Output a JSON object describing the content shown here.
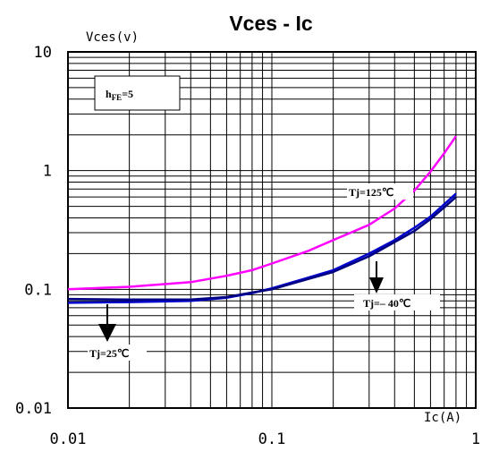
{
  "chart_data": {
    "type": "line",
    "title": "Vces - Ic",
    "ylabel": "Vces(v)",
    "xlabel": "Ic(A)",
    "x_scale": "log",
    "y_scale": "log",
    "xlim": [
      0.01,
      1
    ],
    "ylim": [
      0.01,
      10
    ],
    "grid": true,
    "x_tick_labels": [
      "0.01",
      "0.1",
      "1"
    ],
    "y_tick_labels": [
      "10",
      "1",
      "0.1",
      "0.01"
    ],
    "parameter_box": {
      "text": "h",
      "sub": "FE",
      "suffix": "=5"
    },
    "series": [
      {
        "name": "Tj=125℃",
        "color": "#ff00ff",
        "x": [
          0.01,
          0.02,
          0.04,
          0.06,
          0.08,
          0.1,
          0.15,
          0.2,
          0.3,
          0.4,
          0.5,
          0.6,
          0.7,
          0.8
        ],
        "y": [
          0.1,
          0.105,
          0.115,
          0.13,
          0.145,
          0.165,
          0.21,
          0.26,
          0.35,
          0.48,
          0.68,
          0.98,
          1.4,
          1.95
        ]
      },
      {
        "name": "Tj=25℃",
        "color": "#0000cc",
        "x": [
          0.01,
          0.02,
          0.04,
          0.06,
          0.08,
          0.1,
          0.15,
          0.2,
          0.3,
          0.4,
          0.5,
          0.6,
          0.7,
          0.8
        ],
        "y": [
          0.077,
          0.078,
          0.08,
          0.085,
          0.093,
          0.102,
          0.125,
          0.145,
          0.2,
          0.26,
          0.33,
          0.41,
          0.52,
          0.64
        ]
      },
      {
        "name": "Tj=-40℃",
        "color": "#000080",
        "x": [
          0.01,
          0.02,
          0.04,
          0.06,
          0.08,
          0.1,
          0.15,
          0.2,
          0.3,
          0.4,
          0.5,
          0.6,
          0.7,
          0.8
        ],
        "y": [
          0.083,
          0.082,
          0.082,
          0.086,
          0.094,
          0.1,
          0.122,
          0.14,
          0.19,
          0.25,
          0.31,
          0.39,
          0.49,
          0.6
        ]
      }
    ],
    "annotations": [
      {
        "text": "Tj=125℃",
        "arrow": false
      },
      {
        "text": "Tj=– 40℃",
        "arrow": true
      },
      {
        "text": "Tj=25℃",
        "arrow": true
      }
    ]
  }
}
